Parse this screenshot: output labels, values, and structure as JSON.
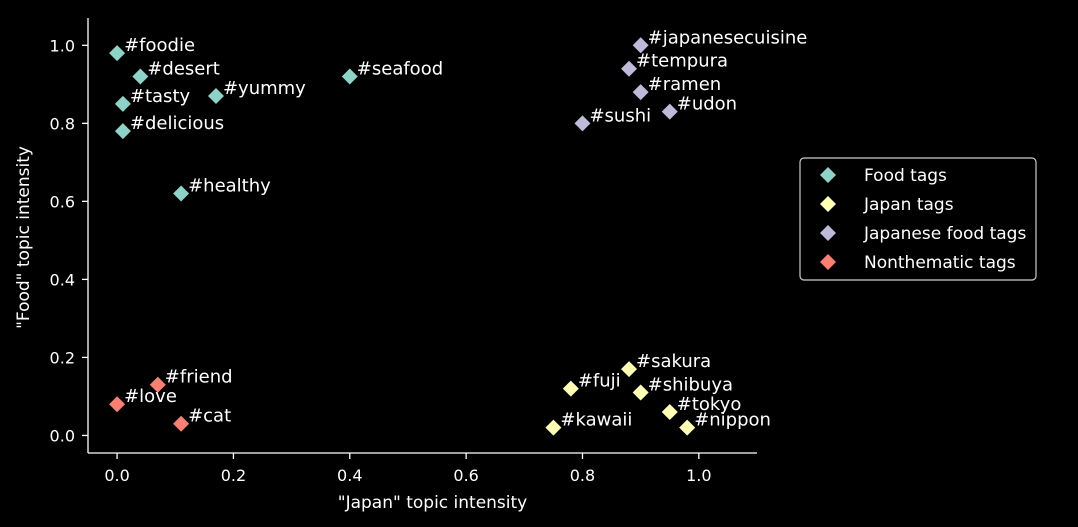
{
  "chart_data": {
    "type": "scatter",
    "title": "",
    "xlabel": "\"Japan\" topic intensity",
    "ylabel": "\"Food\" topic intensity",
    "xlim": [
      -0.05,
      1.1
    ],
    "ylim": [
      -0.045,
      1.07
    ],
    "xticks": [
      0.0,
      0.2,
      0.4,
      0.6,
      0.8,
      1.0
    ],
    "xtick_labels": [
      "0.0",
      "0.2",
      "0.4",
      "0.6",
      "0.8",
      "1.0"
    ],
    "yticks": [
      0.0,
      0.2,
      0.4,
      0.6,
      0.8,
      1.0
    ],
    "ytick_labels": [
      "0.0",
      "0.2",
      "0.4",
      "0.6",
      "0.8",
      "1.0"
    ],
    "grid": false,
    "legend_position": "right",
    "series": [
      {
        "name": "Food tags",
        "color": "#8dd3c7",
        "marker": "diamond",
        "points": [
          {
            "label": "#foodie",
            "x": 0.0,
            "y": 0.98
          },
          {
            "label": "#desert",
            "x": 0.04,
            "y": 0.92
          },
          {
            "label": "#tasty",
            "x": 0.01,
            "y": 0.85
          },
          {
            "label": "#yummy",
            "x": 0.17,
            "y": 0.87
          },
          {
            "label": "#delicious",
            "x": 0.01,
            "y": 0.78
          },
          {
            "label": "#seafood",
            "x": 0.4,
            "y": 0.92
          },
          {
            "label": "#healthy",
            "x": 0.11,
            "y": 0.62
          }
        ]
      },
      {
        "name": "Japan tags",
        "color": "#ffffb3",
        "marker": "diamond",
        "points": [
          {
            "label": "#sakura",
            "x": 0.88,
            "y": 0.17
          },
          {
            "label": "#fuji",
            "x": 0.78,
            "y": 0.12
          },
          {
            "label": "#shibuya",
            "x": 0.9,
            "y": 0.11
          },
          {
            "label": "#tokyo",
            "x": 0.95,
            "y": 0.06
          },
          {
            "label": "#kawaii",
            "x": 0.75,
            "y": 0.02
          },
          {
            "label": "#nippon",
            "x": 0.98,
            "y": 0.02
          }
        ]
      },
      {
        "name": "Japanese food tags",
        "color": "#bebada",
        "marker": "diamond",
        "points": [
          {
            "label": "#japanesecuisine",
            "x": 0.9,
            "y": 1.0
          },
          {
            "label": "#tempura",
            "x": 0.88,
            "y": 0.94
          },
          {
            "label": "#ramen",
            "x": 0.9,
            "y": 0.88
          },
          {
            "label": "#udon",
            "x": 0.95,
            "y": 0.83
          },
          {
            "label": "#sushi",
            "x": 0.8,
            "y": 0.8
          }
        ]
      },
      {
        "name": "Nonthematic tags",
        "color": "#fb8072",
        "marker": "diamond",
        "points": [
          {
            "label": "#friend",
            "x": 0.07,
            "y": 0.13
          },
          {
            "label": "#love",
            "x": 0.0,
            "y": 0.08
          },
          {
            "label": "#cat",
            "x": 0.11,
            "y": 0.03
          }
        ]
      }
    ]
  }
}
